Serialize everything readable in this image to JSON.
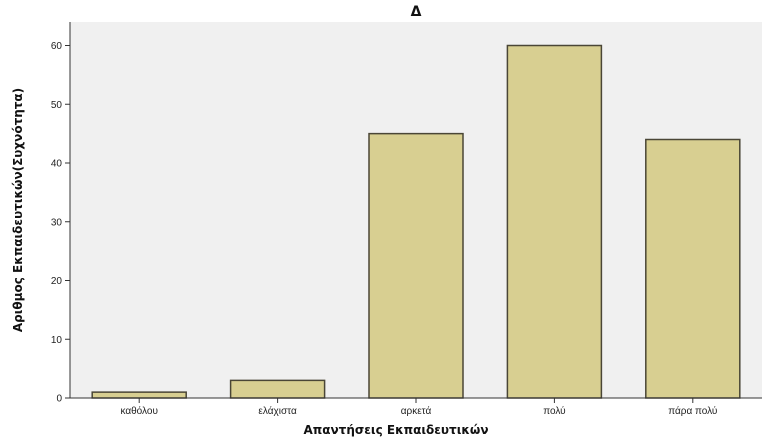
{
  "chart_data": {
    "type": "bar",
    "title": "Δ",
    "xlabel": "Απαντήσεις Εκπαιδευτικών",
    "ylabel": "Αριθμος Εκπαιδευτικών(Συχνότητα)",
    "categories": [
      "καθόλου",
      "ελάχιστα",
      "αρκετά",
      "πολύ",
      "πάρα πολύ"
    ],
    "values": [
      1,
      3,
      45,
      60,
      44
    ],
    "ylim": [
      0,
      64
    ],
    "yticks": [
      0,
      10,
      20,
      30,
      40,
      50,
      60
    ],
    "grid": false,
    "colors": {
      "plot_background": "#f0f0f0",
      "bar_fill": "#d8cf91",
      "bar_stroke": "#4a4636",
      "axis": "#333333"
    }
  }
}
